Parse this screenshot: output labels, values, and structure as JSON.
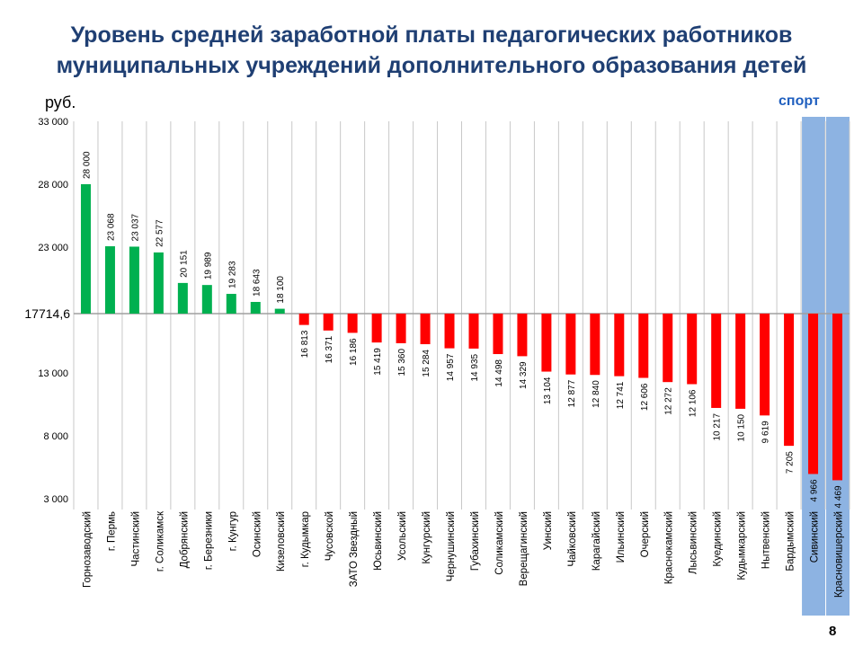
{
  "title_line1": "Уровень средней заработной платы педагогических работников",
  "title_line2": "муниципальных учреждений дополнительного образования детей",
  "unit_label": "руб.",
  "highlight_label": "спорт",
  "page_number": "8",
  "colors": {
    "above": "#00b050",
    "below": "#ff0000",
    "highlight": "#8db3e2",
    "title": "#1f3f73"
  },
  "chart_data": {
    "type": "bar",
    "baseline": 17714.6,
    "baseline_label": "17714,6",
    "ylim": [
      3000,
      33000
    ],
    "yticks": [
      3000,
      8000,
      13000,
      23000,
      28000,
      33000
    ],
    "ytick_labels": [
      "3 000",
      "8 000",
      "13 000",
      "23 000",
      "28 000",
      "33 000"
    ],
    "grid": "vertical",
    "highlighted_categories": [
      "Сивинский",
      "Красновишерский"
    ],
    "categories": [
      "Горнозаводский",
      "г. Пермь",
      "Частинский",
      "г. Соликамск",
      "Добрянский",
      "г. Березники",
      "г. Кунгур",
      "Осинский",
      "Кизеловский",
      "г. Кудымкар",
      "Чусовской",
      "ЗАТО Звездный",
      "Юсьвинский",
      "Усольский",
      "Кунгурский",
      "Чернушинский",
      "Губахинский",
      "Соликамский",
      "Верещагинский",
      "Уинский",
      "Чайковский",
      "Карагайский",
      "Ильинский",
      "Очерский",
      "Краснокамский",
      "Лысьвинский",
      "Куединский",
      "Кудымкарский",
      "Нытвенский",
      "Бардымский",
      "Сивинский",
      "Красновишерский"
    ],
    "values": [
      28000,
      23068,
      23037,
      22577,
      20151,
      19989,
      19283,
      18643,
      18100,
      16813,
      16371,
      16186,
      15419,
      15360,
      15284,
      14957,
      14935,
      14498,
      14329,
      13104,
      12877,
      12840,
      12741,
      12606,
      12272,
      12106,
      10217,
      10150,
      9619,
      7205,
      4966,
      4469
    ],
    "value_labels": [
      "28 000",
      "23 068",
      "23 037",
      "22 577",
      "20 151",
      "19 989",
      "19 283",
      "18 643",
      "18 100",
      "16 813",
      "16 371",
      "16 186",
      "15 419",
      "15 360",
      "15 284",
      "14 957",
      "14 935",
      "14 498",
      "14 329",
      "13 104",
      "12 877",
      "12 840",
      "12 741",
      "12 606",
      "12 272",
      "12 106",
      "10 217",
      "10 150",
      "9 619",
      "7 205",
      "4 966",
      "4 469"
    ]
  }
}
